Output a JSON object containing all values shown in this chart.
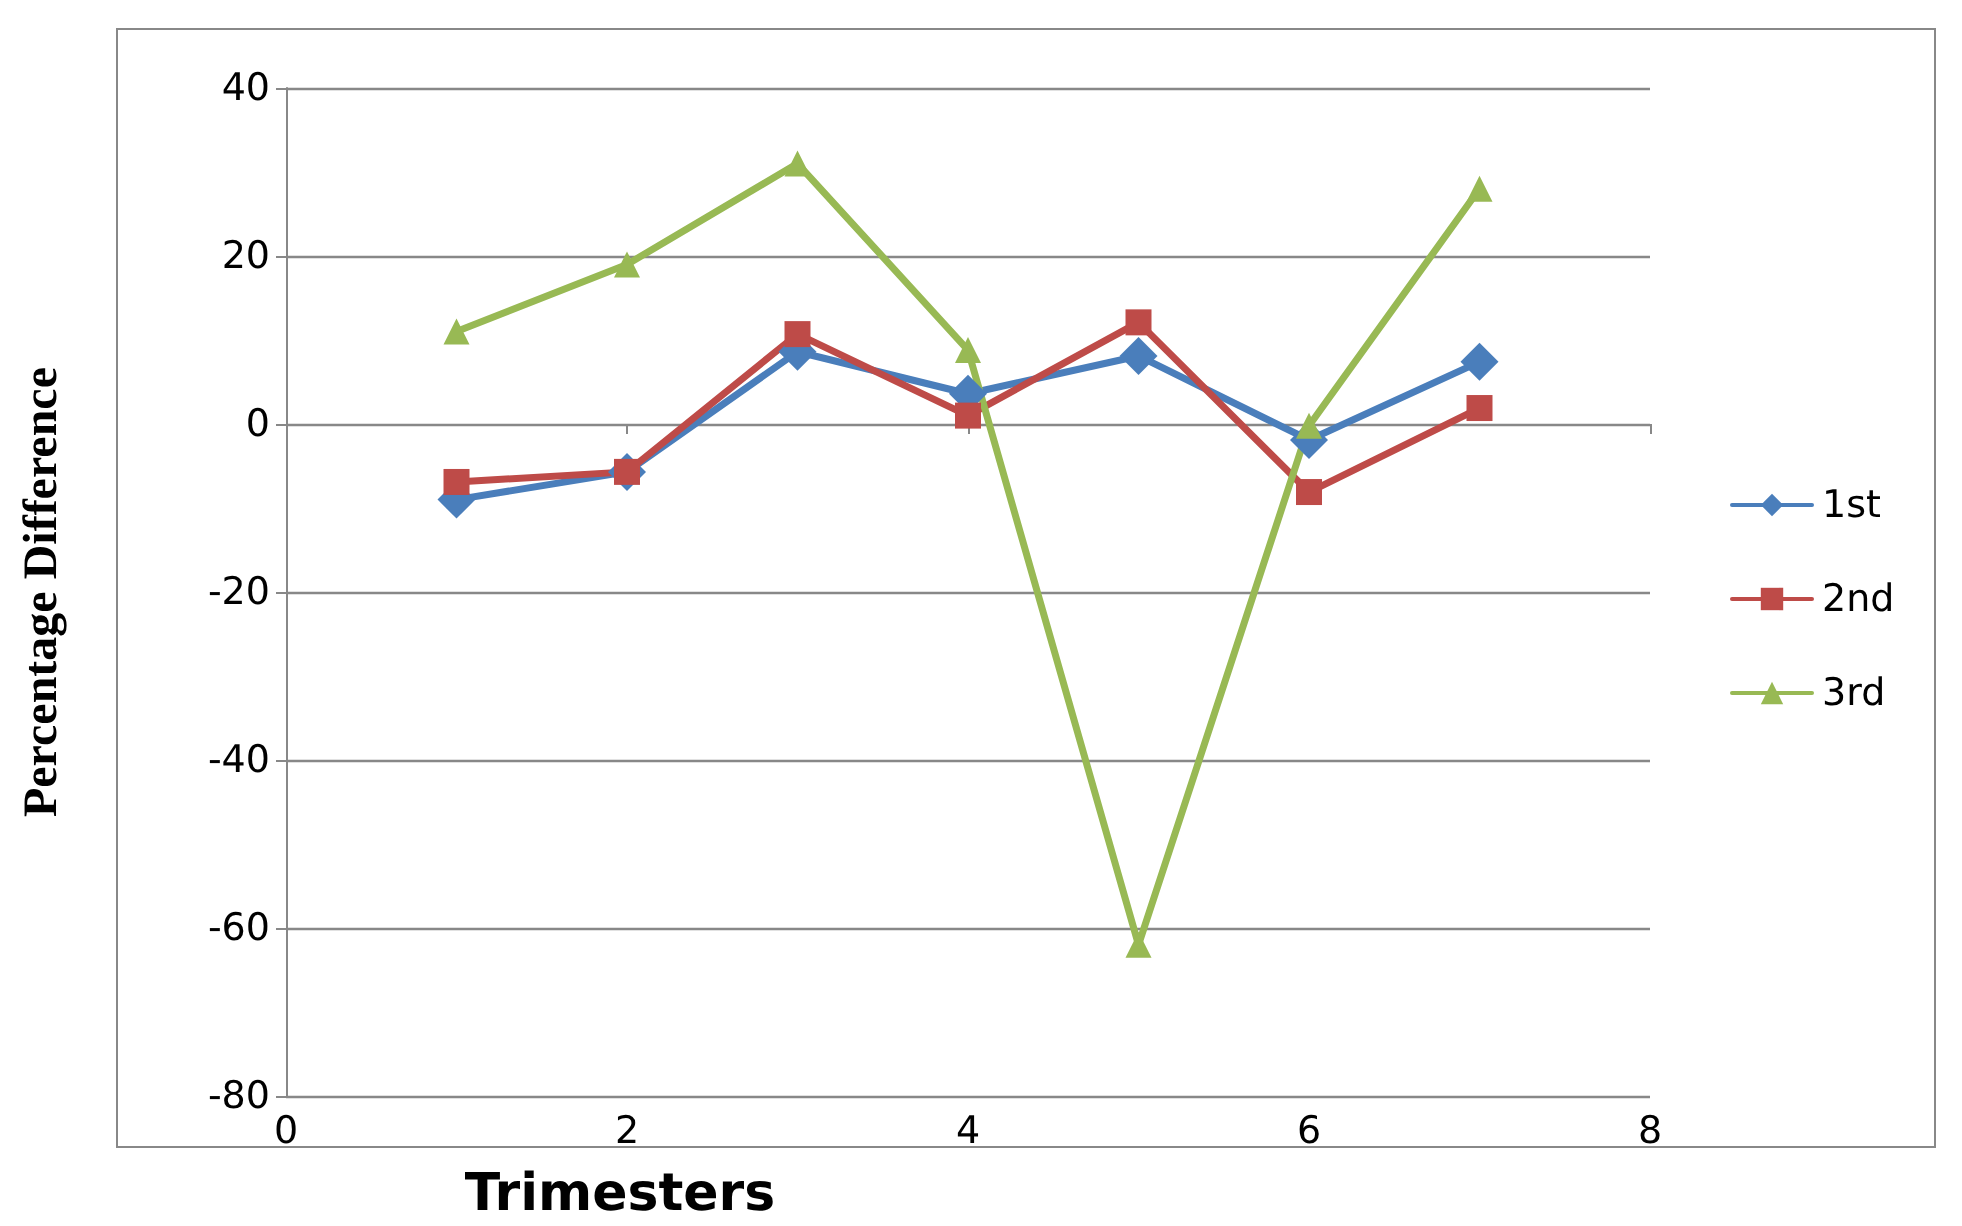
{
  "chart_data": {
    "type": "line",
    "xlabel": "Trimesters",
    "ylabel": "Percentage Difference",
    "x": [
      1,
      2,
      3,
      4,
      5,
      6,
      7
    ],
    "series": [
      {
        "name": "1st",
        "color": "#4a7ebb",
        "marker": "diamond",
        "values": [
          -9,
          -5.7,
          8.6,
          3.6,
          8.1,
          -1.9,
          7.4
        ]
      },
      {
        "name": "2nd",
        "color": "#be4b48",
        "marker": "square",
        "values": [
          -6.9,
          -5.7,
          10.7,
          1,
          12.1,
          -8.1,
          1.9
        ]
      },
      {
        "name": "3rd",
        "color": "#98b954",
        "marker": "triangle",
        "values": [
          11,
          19,
          31,
          8.8,
          -62,
          -0.2,
          28
        ]
      }
    ],
    "xlim": [
      0,
      8
    ],
    "xticks": [
      0,
      2,
      4,
      6,
      8
    ],
    "ylim": [
      -80,
      40
    ],
    "yticks": [
      -80,
      -60,
      -40,
      -20,
      0,
      20,
      40
    ],
    "grid": "y",
    "legend": "right",
    "line_style": "solid"
  }
}
